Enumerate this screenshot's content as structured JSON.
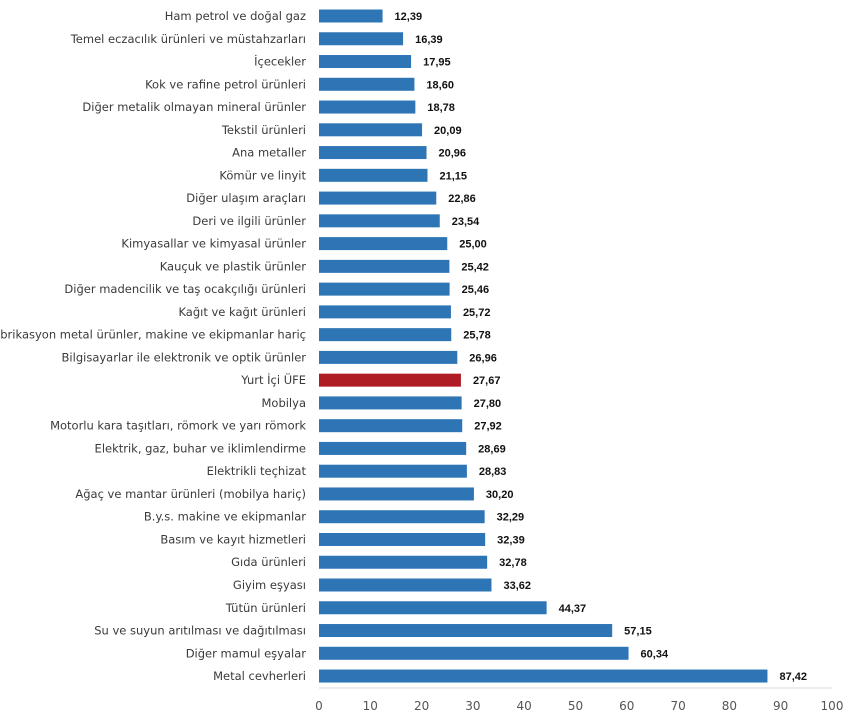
{
  "chart_data": {
    "type": "bar",
    "orientation": "horizontal",
    "categories": [
      "Ham petrol ve doğal gaz",
      "Temel eczacılık ürünleri ve müstahzarları",
      "İçecekler",
      "Kok ve rafine petrol ürünleri",
      "Diğer metalik olmayan mineral ürünler",
      "Tekstil ürünleri",
      "Ana metaller",
      "Kömür ve linyit",
      "Diğer ulaşım araçları",
      "Deri ve ilgili ürünler",
      "Kimyasallar ve kimyasal ürünler",
      "Kauçuk ve plastik ürünler",
      "Diğer madencilik ve taş ocakçılığı ürünleri",
      "Kağıt ve kağıt ürünleri",
      "Fabrikasyon metal ürünler, makine ve ekipmanlar hariç",
      "Bilgisayarlar ile elektronik ve optik ürünler",
      "Yurt İçi ÜFE",
      "Mobilya",
      "Motorlu kara taşıtları, römork ve yarı römork",
      "Elektrik, gaz, buhar ve iklimlendirme",
      "Elektrikli teçhizat",
      "Ağaç ve mantar ürünleri (mobilya hariç)",
      "B.y.s. makine ve ekipmanlar",
      "Basım ve kayıt hizmetleri",
      "Gıda ürünleri",
      "Giyim eşyası",
      "Tütün ürünleri",
      "Su ve suyun arıtılması ve dağıtılması",
      "Diğer mamul eşyalar",
      "Metal cevherleri"
    ],
    "values": [
      12.39,
      16.39,
      17.95,
      18.6,
      18.78,
      20.09,
      20.96,
      21.15,
      22.86,
      23.54,
      25.0,
      25.42,
      25.46,
      25.72,
      25.78,
      26.96,
      27.67,
      27.8,
      27.92,
      28.69,
      28.83,
      30.2,
      32.29,
      32.39,
      32.78,
      33.62,
      44.37,
      57.15,
      60.34,
      87.42
    ],
    "value_labels": [
      "12,39",
      "16,39",
      "17,95",
      "18,60",
      "18,78",
      "20,09",
      "20,96",
      "21,15",
      "22,86",
      "23,54",
      "25,00",
      "25,42",
      "25,46",
      "25,72",
      "25,78",
      "26,96",
      "27,67",
      "27,80",
      "27,92",
      "28,69",
      "28,83",
      "30,20",
      "32,29",
      "32,39",
      "32,78",
      "33,62",
      "44,37",
      "57,15",
      "60,34",
      "87,42"
    ],
    "highlight_category": "Yurt İçi ÜFE",
    "xlim": [
      0,
      100
    ],
    "xticks": [
      "0",
      "10",
      "20",
      "30",
      "40",
      "50",
      "60",
      "70",
      "80",
      "90",
      "100"
    ],
    "grid": false,
    "title": "",
    "xlabel": "",
    "ylabel": "",
    "colors": {
      "bar": "#2e75b6",
      "highlight": "#b01c24"
    }
  }
}
